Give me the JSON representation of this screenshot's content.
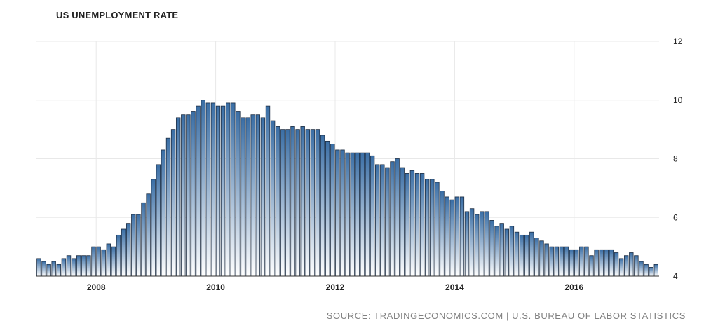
{
  "chart_data": {
    "type": "bar",
    "title": "US UNEMPLOYMENT RATE",
    "source": "SOURCE: TRADINGECONOMICS.COM | U.S. BUREAU OF LABOR STATISTICS",
    "start": "2007-01",
    "frequency": "monthly",
    "x_ticks": [
      "2008",
      "2010",
      "2012",
      "2014",
      "2016"
    ],
    "y_ticks": [
      4,
      6,
      8,
      10,
      12
    ],
    "ylim": [
      4,
      12
    ],
    "y_axis_position": "right",
    "grid": true,
    "colors": {
      "bar_top": "#3a6ea5",
      "bar_bottom": "#ffffff",
      "bar_stroke": "#1f2f44",
      "grid": "#e8e8e8"
    },
    "values": [
      4.6,
      4.5,
      4.4,
      4.5,
      4.4,
      4.6,
      4.7,
      4.6,
      4.7,
      4.7,
      4.7,
      5.0,
      5.0,
      4.9,
      5.1,
      5.0,
      5.4,
      5.6,
      5.8,
      6.1,
      6.1,
      6.5,
      6.8,
      7.3,
      7.8,
      8.3,
      8.7,
      9.0,
      9.4,
      9.5,
      9.5,
      9.6,
      9.8,
      10.0,
      9.9,
      9.9,
      9.8,
      9.8,
      9.9,
      9.9,
      9.6,
      9.4,
      9.4,
      9.5,
      9.5,
      9.4,
      9.8,
      9.3,
      9.1,
      9.0,
      9.0,
      9.1,
      9.0,
      9.1,
      9.0,
      9.0,
      9.0,
      8.8,
      8.6,
      8.5,
      8.3,
      8.3,
      8.2,
      8.2,
      8.2,
      8.2,
      8.2,
      8.1,
      7.8,
      7.8,
      7.7,
      7.9,
      8.0,
      7.7,
      7.5,
      7.6,
      7.5,
      7.5,
      7.3,
      7.3,
      7.2,
      6.9,
      6.7,
      6.6,
      6.7,
      6.7,
      6.2,
      6.3,
      6.1,
      6.2,
      6.2,
      5.9,
      5.7,
      5.8,
      5.6,
      5.7,
      5.5,
      5.4,
      5.4,
      5.5,
      5.3,
      5.2,
      5.1,
      5.0,
      5.0,
      5.0,
      5.0,
      4.9,
      4.9,
      5.0,
      5.0,
      4.7,
      4.9,
      4.9,
      4.9,
      4.9,
      4.8,
      4.6,
      4.7,
      4.8,
      4.7,
      4.5,
      4.4,
      4.3,
      4.4
    ]
  }
}
